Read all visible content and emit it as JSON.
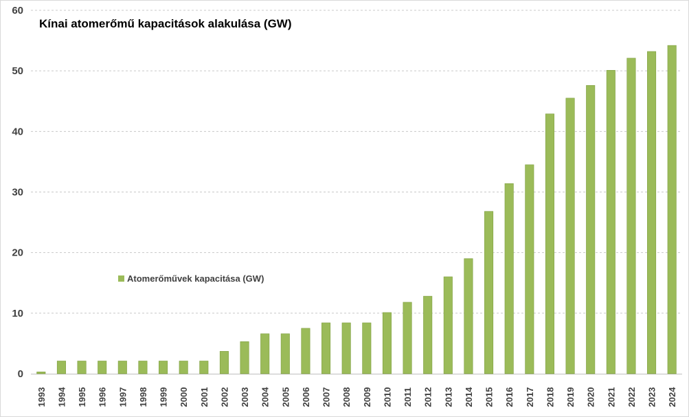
{
  "chart_data": {
    "type": "bar",
    "title": "Kínai atomerőmű kapacitások alakulása (GW)",
    "xlabel": "",
    "ylabel": "",
    "ylim": [
      0,
      60
    ],
    "yticks": [
      0,
      10,
      20,
      30,
      40,
      50,
      60
    ],
    "grid": true,
    "legend_position": "middle-left",
    "categories": [
      "1993",
      "1994",
      "1995",
      "1996",
      "1997",
      "1998",
      "1999",
      "2000",
      "2001",
      "2002",
      "2003",
      "2004",
      "2005",
      "2006",
      "2007",
      "2008",
      "2009",
      "2010",
      "2011",
      "2012",
      "2013",
      "2014",
      "2015",
      "2016",
      "2017",
      "2018",
      "2019",
      "2020",
      "2021",
      "2022",
      "2023",
      "2024"
    ],
    "series": [
      {
        "name": "Atomerőművek kapacitása (GW)",
        "color": "#9bbb59",
        "values": [
          0.3,
          2.1,
          2.1,
          2.1,
          2.1,
          2.1,
          2.1,
          2.1,
          2.1,
          3.7,
          5.3,
          6.6,
          6.6,
          7.5,
          8.4,
          8.4,
          8.4,
          10.1,
          11.8,
          12.8,
          16.0,
          19.0,
          26.8,
          31.4,
          34.5,
          42.9,
          45.5,
          47.6,
          50.1,
          52.1,
          53.2,
          54.2
        ]
      }
    ]
  }
}
